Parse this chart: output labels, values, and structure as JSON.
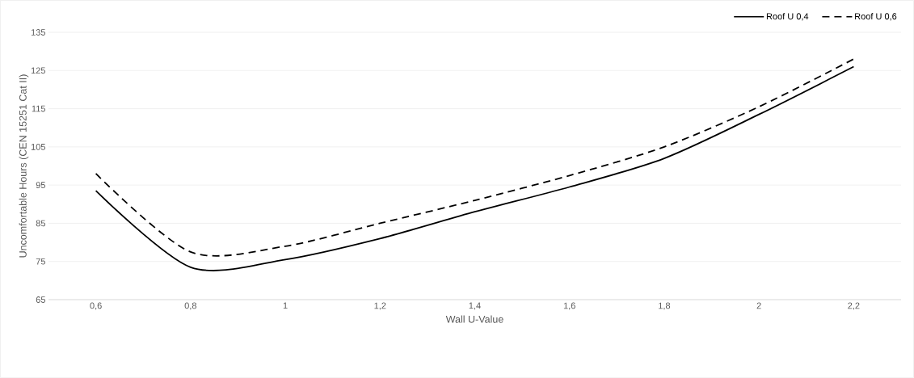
{
  "chart_data": {
    "type": "line",
    "xlabel": "Wall U-Value",
    "ylabel": "Uncomfortable Hours (CEN 15251 Cat II)",
    "categories": [
      "0,6",
      "0,8",
      "1",
      "1,2",
      "1,4",
      "1,6",
      "1,8",
      "2",
      "2,2"
    ],
    "series": [
      {
        "name": "Roof U 0,4",
        "color": "#000000",
        "line_style": "solid",
        "values": [
          93.5,
          73.5,
          75.5,
          81,
          88,
          94.5,
          102,
          113.5,
          126
        ]
      },
      {
        "name": "Roof U 0,6",
        "color": "#000000",
        "line_style": "dashed",
        "values": [
          98,
          77.5,
          79,
          85,
          91,
          97.5,
          105,
          115.5,
          128
        ]
      }
    ],
    "ylim": [
      65,
      135
    ],
    "yticks": [
      65,
      75,
      85,
      95,
      105,
      115,
      125,
      135
    ],
    "grid": "y",
    "legend": "top right"
  }
}
